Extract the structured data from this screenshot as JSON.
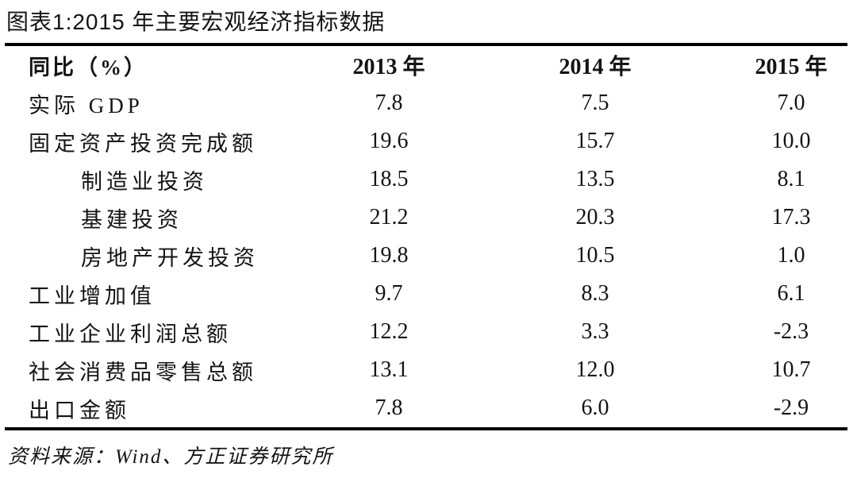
{
  "title": "图表1:2015 年主要宏观经济指标数据",
  "source": "资料来源：Wind、方正证券研究所",
  "colors": {
    "text": "#141414",
    "rule": "#000000",
    "background": "#ffffff"
  },
  "table": {
    "header": {
      "label": "同比（%）",
      "y2013": "2013 年",
      "y2014": "2014 年",
      "y2015": "2015 年"
    },
    "rows": [
      {
        "label": "实际 GDP",
        "indent": false,
        "v2013": "7.8",
        "v2014": "7.5",
        "v2015": "7.0"
      },
      {
        "label": "固定资产投资完成额",
        "indent": false,
        "v2013": "19.6",
        "v2014": "15.7",
        "v2015": "10.0"
      },
      {
        "label": "制造业投资",
        "indent": true,
        "v2013": "18.5",
        "v2014": "13.5",
        "v2015": "8.1"
      },
      {
        "label": "基建投资",
        "indent": true,
        "v2013": "21.2",
        "v2014": "20.3",
        "v2015": "17.3"
      },
      {
        "label": "房地产开发投资",
        "indent": true,
        "v2013": "19.8",
        "v2014": "10.5",
        "v2015": "1.0"
      },
      {
        "label": "工业增加值",
        "indent": false,
        "v2013": "9.7",
        "v2014": "8.3",
        "v2015": "6.1"
      },
      {
        "label": "工业企业利润总额",
        "indent": false,
        "v2013": "12.2",
        "v2014": "3.3",
        "v2015": "-2.3"
      },
      {
        "label": "社会消费品零售总额",
        "indent": false,
        "v2013": "13.1",
        "v2014": "12.0",
        "v2015": "10.7"
      },
      {
        "label": "出口金额",
        "indent": false,
        "v2013": "7.8",
        "v2014": "6.0",
        "v2015": "-2.9"
      }
    ]
  },
  "chart_data": {
    "type": "table",
    "title": "图表1:2015 年主要宏观经济指标数据",
    "columns": [
      "同比（%）",
      "2013 年",
      "2014 年",
      "2015 年"
    ],
    "rows": [
      {
        "indicator": "实际 GDP",
        "indent": 0,
        "values": [
          7.8,
          7.5,
          7.0
        ]
      },
      {
        "indicator": "固定资产投资完成额",
        "indent": 0,
        "values": [
          19.6,
          15.7,
          10.0
        ]
      },
      {
        "indicator": "制造业投资",
        "indent": 1,
        "values": [
          18.5,
          13.5,
          8.1
        ]
      },
      {
        "indicator": "基建投资",
        "indent": 1,
        "values": [
          21.2,
          20.3,
          17.3
        ]
      },
      {
        "indicator": "房地产开发投资",
        "indent": 1,
        "values": [
          19.8,
          10.5,
          1.0
        ]
      },
      {
        "indicator": "工业增加值",
        "indent": 0,
        "values": [
          9.7,
          8.3,
          6.1
        ]
      },
      {
        "indicator": "工业企业利润总额",
        "indent": 0,
        "values": [
          12.2,
          3.3,
          -2.3
        ]
      },
      {
        "indicator": "社会消费品零售总额",
        "indent": 0,
        "values": [
          13.1,
          12.0,
          10.7
        ]
      },
      {
        "indicator": "出口金额",
        "indent": 0,
        "values": [
          7.8,
          6.0,
          -2.9
        ]
      }
    ],
    "units": "percent, year-over-year",
    "source": "资料来源：Wind、方正证券研究所"
  }
}
